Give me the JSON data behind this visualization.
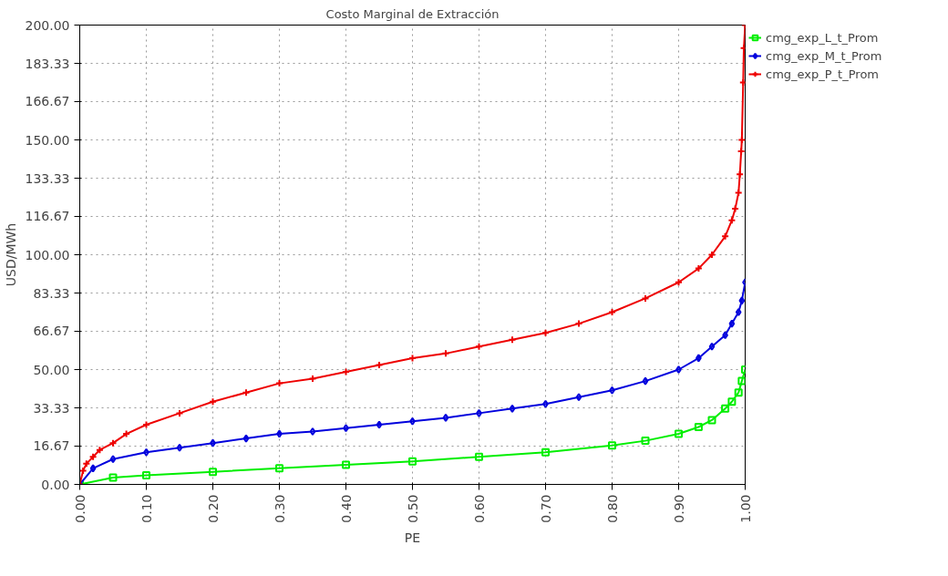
{
  "chart_data": {
    "type": "line",
    "title": "Costo Marginal de Extracción",
    "xlabel": "PE",
    "ylabel": "USD/MWh",
    "xlim": [
      0,
      1
    ],
    "xticks": [
      {
        "value": 0,
        "label": "0.00"
      },
      {
        "value": 0.1,
        "label": "0.10"
      },
      {
        "value": 0.2,
        "label": "0.20"
      },
      {
        "value": 0.3,
        "label": "0.30"
      },
      {
        "value": 0.4,
        "label": "0.40"
      },
      {
        "value": 0.5,
        "label": "0.50"
      },
      {
        "value": 0.6,
        "label": "0.60"
      },
      {
        "value": 0.7,
        "label": "0.70"
      },
      {
        "value": 0.8,
        "label": "0.80"
      },
      {
        "value": 0.9,
        "label": "0.90"
      },
      {
        "value": 1,
        "label": "1.00"
      }
    ],
    "ylim": [
      0,
      200
    ],
    "yticks": [
      {
        "value": 0,
        "label": "0.00"
      },
      {
        "value": 16.67,
        "label": "16.67"
      },
      {
        "value": 33.33,
        "label": "33.33"
      },
      {
        "value": 50,
        "label": "50.00"
      },
      {
        "value": 66.67,
        "label": "66.67"
      },
      {
        "value": 83.33,
        "label": "83.33"
      },
      {
        "value": 100,
        "label": "100.00"
      },
      {
        "value": 116.67,
        "label": "116.67"
      },
      {
        "value": 133.33,
        "label": "133.33"
      },
      {
        "value": 150,
        "label": "150.00"
      },
      {
        "value": 166.67,
        "label": "166.67"
      },
      {
        "value": 183.33,
        "label": "183.33"
      },
      {
        "value": 200,
        "label": "200.00"
      }
    ],
    "grid": true,
    "legend": "top right",
    "line_style": "solid",
    "series": [
      {
        "name": "cmg_exp_L_t_Prom",
        "color": "#00ee00",
        "marker": "square",
        "x": [
          0,
          0.05,
          0.1,
          0.2,
          0.3,
          0.4,
          0.5,
          0.6,
          0.7,
          0.8,
          0.85,
          0.9,
          0.93,
          0.95,
          0.97,
          0.98,
          0.99,
          0.995,
          1.0
        ],
        "values": [
          0,
          3,
          4,
          5.5,
          7,
          8.5,
          10,
          12,
          14,
          17,
          19,
          22,
          25,
          28,
          33,
          36,
          40,
          45,
          50
        ]
      },
      {
        "name": "cmg_exp_M_t_Prom",
        "color": "#0000dd",
        "marker": "diamond",
        "x": [
          0,
          0.02,
          0.05,
          0.1,
          0.15,
          0.2,
          0.25,
          0.3,
          0.35,
          0.4,
          0.45,
          0.5,
          0.55,
          0.6,
          0.65,
          0.7,
          0.75,
          0.8,
          0.85,
          0.9,
          0.93,
          0.95,
          0.97,
          0.98,
          0.99,
          0.995,
          1.0
        ],
        "values": [
          0,
          7,
          11,
          14,
          16,
          18,
          20,
          22,
          23,
          24.5,
          26,
          27.5,
          29,
          31,
          33,
          35,
          38,
          41,
          45,
          50,
          55,
          60,
          65,
          70,
          75,
          80,
          88
        ]
      },
      {
        "name": "cmg_exp_P_t_Prom",
        "color": "#ee0000",
        "marker": "cross",
        "x": [
          0,
          0.005,
          0.01,
          0.02,
          0.03,
          0.05,
          0.07,
          0.1,
          0.15,
          0.2,
          0.25,
          0.3,
          0.35,
          0.4,
          0.45,
          0.5,
          0.55,
          0.6,
          0.65,
          0.7,
          0.75,
          0.8,
          0.85,
          0.9,
          0.93,
          0.95,
          0.97,
          0.98,
          0.985,
          0.99,
          0.992,
          0.994,
          0.995,
          0.997,
          0.998,
          1.0
        ],
        "values": [
          0,
          6,
          9,
          12,
          15,
          18,
          22,
          26,
          31,
          36,
          40,
          44,
          46,
          49,
          52,
          55,
          57,
          60,
          63,
          66,
          70,
          75,
          81,
          88,
          94,
          100,
          108,
          115,
          120,
          127,
          135,
          145,
          150,
          175,
          190,
          200
        ]
      }
    ]
  }
}
